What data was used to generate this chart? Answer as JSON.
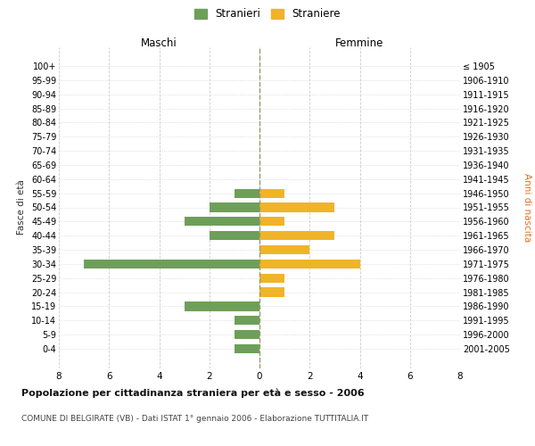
{
  "age_groups": [
    "0-4",
    "5-9",
    "10-14",
    "15-19",
    "20-24",
    "25-29",
    "30-34",
    "35-39",
    "40-44",
    "45-49",
    "50-54",
    "55-59",
    "60-64",
    "65-69",
    "70-74",
    "75-79",
    "80-84",
    "85-89",
    "90-94",
    "95-99",
    "100+"
  ],
  "birth_years": [
    "2001-2005",
    "1996-2000",
    "1991-1995",
    "1986-1990",
    "1981-1985",
    "1976-1980",
    "1971-1975",
    "1966-1970",
    "1961-1965",
    "1956-1960",
    "1951-1955",
    "1946-1950",
    "1941-1945",
    "1936-1940",
    "1931-1935",
    "1926-1930",
    "1921-1925",
    "1916-1920",
    "1911-1915",
    "1906-1910",
    "≤ 1905"
  ],
  "maschi": [
    1,
    1,
    1,
    3,
    0,
    0,
    7,
    0,
    2,
    3,
    2,
    1,
    0,
    0,
    0,
    0,
    0,
    0,
    0,
    0,
    0
  ],
  "femmine": [
    0,
    0,
    0,
    0,
    1,
    1,
    4,
    2,
    3,
    1,
    3,
    1,
    0,
    0,
    0,
    0,
    0,
    0,
    0,
    0,
    0
  ],
  "color_maschi": "#6e9f5a",
  "color_femmine": "#f0b429",
  "title": "Popolazione per cittadinanza straniera per età e sesso - 2006",
  "subtitle": "COMUNE DI BELGIRATE (VB) - Dati ISTAT 1° gennaio 2006 - Elaborazione TUTTITALIA.IT",
  "xlabel_left": "Maschi",
  "xlabel_right": "Femmine",
  "ylabel_left": "Fasce di età",
  "ylabel_right": "Anni di nascita",
  "legend_maschi": "Stranieri",
  "legend_femmine": "Straniere",
  "xlim": 8,
  "background_color": "#ffffff",
  "grid_color": "#cccccc",
  "zero_line_color": "#999966"
}
